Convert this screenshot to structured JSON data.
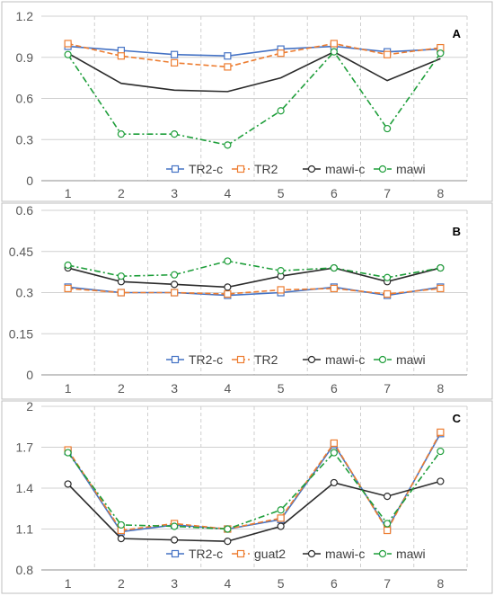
{
  "chart_data": [
    {
      "type": "line",
      "panel_label": "A",
      "categories": [
        "1",
        "2",
        "3",
        "4",
        "5",
        "6",
        "7",
        "8"
      ],
      "y_ticks": [
        "0",
        "0.3",
        "0.6",
        "0.9",
        "1.2"
      ],
      "ylim": [
        0,
        1.2
      ],
      "grid": true,
      "legend_position": "bottom-right",
      "series": [
        {
          "name": "TR2-c",
          "color": "#4472C4",
          "style": "solid",
          "marker": "square",
          "values": [
            0.98,
            0.95,
            0.92,
            0.91,
            0.96,
            0.98,
            0.94,
            0.96
          ]
        },
        {
          "name": "TR2",
          "color": "#ED7D31",
          "style": "dashed",
          "marker": "square",
          "values": [
            1.0,
            0.91,
            0.86,
            0.83,
            0.93,
            1.0,
            0.92,
            0.97
          ]
        },
        {
          "name": "mawi-c",
          "color": "#2b2b2b",
          "style": "solid",
          "marker": "none",
          "values": [
            0.93,
            0.71,
            0.66,
            0.65,
            0.75,
            0.94,
            0.73,
            0.89
          ]
        },
        {
          "name": "mawi",
          "color": "#1E9E3A",
          "style": "dashdot",
          "marker": "circle",
          "values": [
            0.92,
            0.34,
            0.34,
            0.26,
            0.51,
            0.94,
            0.38,
            0.93
          ]
        }
      ]
    },
    {
      "type": "line",
      "panel_label": "B",
      "categories": [
        "1",
        "2",
        "3",
        "4",
        "5",
        "6",
        "7",
        "8"
      ],
      "y_ticks": [
        "0",
        "0.15",
        "0.3",
        "0.45",
        "0.6"
      ],
      "ylim": [
        0,
        0.6
      ],
      "grid": true,
      "legend_position": "bottom-right",
      "series": [
        {
          "name": "TR2-c",
          "color": "#4472C4",
          "style": "solid",
          "marker": "square",
          "values": [
            0.32,
            0.3,
            0.3,
            0.29,
            0.3,
            0.32,
            0.29,
            0.32
          ]
        },
        {
          "name": "TR2",
          "color": "#ED7D31",
          "style": "dashed",
          "marker": "square",
          "values": [
            0.315,
            0.3,
            0.3,
            0.295,
            0.31,
            0.315,
            0.295,
            0.315
          ]
        },
        {
          "name": "mawi-c",
          "color": "#2b2b2b",
          "style": "solid",
          "marker": "circle",
          "values": [
            0.39,
            0.34,
            0.33,
            0.32,
            0.36,
            0.39,
            0.34,
            0.39
          ]
        },
        {
          "name": "mawi",
          "color": "#1E9E3A",
          "style": "dashdot",
          "marker": "circle",
          "values": [
            0.4,
            0.36,
            0.365,
            0.415,
            0.38,
            0.39,
            0.355,
            0.39
          ]
        }
      ]
    },
    {
      "type": "line",
      "panel_label": "C",
      "categories": [
        "1",
        "2",
        "3",
        "4",
        "5",
        "6",
        "7",
        "8"
      ],
      "y_ticks": [
        "0.8",
        "1.1",
        "1.4",
        "1.7",
        "2"
      ],
      "ylim": [
        0.8,
        2.0
      ],
      "grid": true,
      "legend_position": "bottom-right",
      "series": [
        {
          "name": "TR2-c",
          "color": "#4472C4",
          "style": "solid",
          "marker": "square",
          "values": [
            1.67,
            1.08,
            1.13,
            1.1,
            1.17,
            1.72,
            1.1,
            1.8
          ]
        },
        {
          "name": "guat2",
          "color": "#ED7D31",
          "style": "dashed",
          "marker": "square",
          "values": [
            1.68,
            1.09,
            1.14,
            1.1,
            1.18,
            1.73,
            1.09,
            1.81
          ]
        },
        {
          "name": "mawi-c",
          "color": "#2b2b2b",
          "style": "solid",
          "marker": "circle",
          "values": [
            1.43,
            1.03,
            1.02,
            1.01,
            1.12,
            1.44,
            1.34,
            1.45
          ]
        },
        {
          "name": "mawi",
          "color": "#1E9E3A",
          "style": "dashdot",
          "marker": "circle",
          "values": [
            1.66,
            1.13,
            1.12,
            1.1,
            1.24,
            1.66,
            1.14,
            1.67
          ]
        }
      ]
    }
  ]
}
